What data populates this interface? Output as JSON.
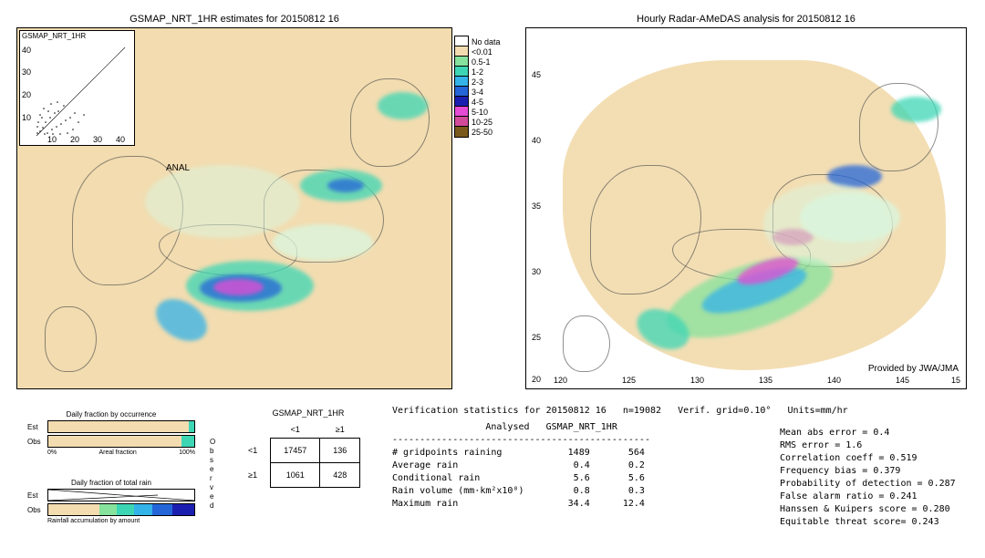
{
  "maps": {
    "left": {
      "title": "GSMAP_NRT_1HR estimates for 20150812 16",
      "inset_title": "GSMAP_NRT_1HR",
      "inset_yticks": [
        "40",
        "30",
        "20",
        "10"
      ],
      "inset_xticks": [
        "10",
        "20",
        "30",
        "40"
      ],
      "anal": "ANAL",
      "bg": "#f2dcb0"
    },
    "right": {
      "title": "Hourly Radar-AMeDAS analysis for 20150812 16",
      "lat_ticks": [
        "45",
        "40",
        "35",
        "30",
        "25",
        "20"
      ],
      "lon_ticks": [
        "120",
        "125",
        "130",
        "135",
        "140",
        "145",
        "15"
      ],
      "provided": "Provided by JWA/JMA",
      "bg": "#ffffff"
    }
  },
  "legend": {
    "items": [
      {
        "label": "No data",
        "color": "#ffffff"
      },
      {
        "label": "<0.01",
        "color": "#f2dcb0"
      },
      {
        "label": "0.5-1",
        "color": "#86e29c"
      },
      {
        "label": "1-2",
        "color": "#3dd6b5"
      },
      {
        "label": "2-3",
        "color": "#34b3e8"
      },
      {
        "label": "3-4",
        "color": "#2465d8"
      },
      {
        "label": "4-5",
        "color": "#1b1fb0"
      },
      {
        "label": "5-10",
        "color": "#e64bd4"
      },
      {
        "label": "10-25",
        "color": "#d24b9a"
      },
      {
        "label": "25-50",
        "color": "#7a5a1c"
      }
    ]
  },
  "rain_colors": {
    "c05": "#d9f7e0",
    "c1": "#86e29c",
    "c2": "#3dd6b5",
    "c3": "#34b3e8",
    "c4": "#2465d8",
    "c5": "#1b1fb0",
    "c10": "#e64bd4",
    "c25": "#d24b9a"
  },
  "bottom": {
    "occurrence": {
      "title": "Daily fraction by occurrence",
      "est_label": "Est",
      "obs_label": "Obs",
      "scale_left": "0%",
      "scale_mid": "Areal fraction",
      "scale_right": "100%"
    },
    "total_rain": {
      "title": "Daily fraction of total rain",
      "est_label": "Est",
      "obs_label": "Obs",
      "footer": "Rainfall accumulation by amount"
    },
    "observed_label": "Observed",
    "contingency": {
      "title": "GSMAP_NRT_1HR",
      "col_lt": "<1",
      "col_ge": "≥1",
      "row_lt": "<1",
      "row_ge": "≥1",
      "cells": {
        "a": "17457",
        "b": "136",
        "c": "1061",
        "d": "428"
      }
    },
    "stats": {
      "header": "Verification statistics for 20150812 16   n=19082   Verif. grid=0.10°   Units=mm/hr",
      "col_an": "Analysed",
      "col_gs": "GSMAP_NRT_1HR",
      "rows": [
        {
          "label": "# gridpoints raining",
          "an": "1489",
          "gs": "564"
        },
        {
          "label": "Average rain",
          "an": "0.4",
          "gs": "0.2"
        },
        {
          "label": "Conditional rain",
          "an": "5.6",
          "gs": "5.6"
        },
        {
          "label": "Rain volume (mm·km²x10⁸)",
          "an": "0.8",
          "gs": "0.3"
        },
        {
          "label": "Maximum rain",
          "an": "34.4",
          "gs": "12.4"
        }
      ],
      "right": [
        "Mean abs error = 0.4",
        "RMS error = 1.6",
        "Correlation coeff = 0.519",
        "Frequency bias = 0.379",
        "Probability of detection = 0.287",
        "False alarm ratio = 0.241",
        "Hanssen & Kuipers score = 0.280",
        "Equitable threat score= 0.243"
      ]
    }
  }
}
